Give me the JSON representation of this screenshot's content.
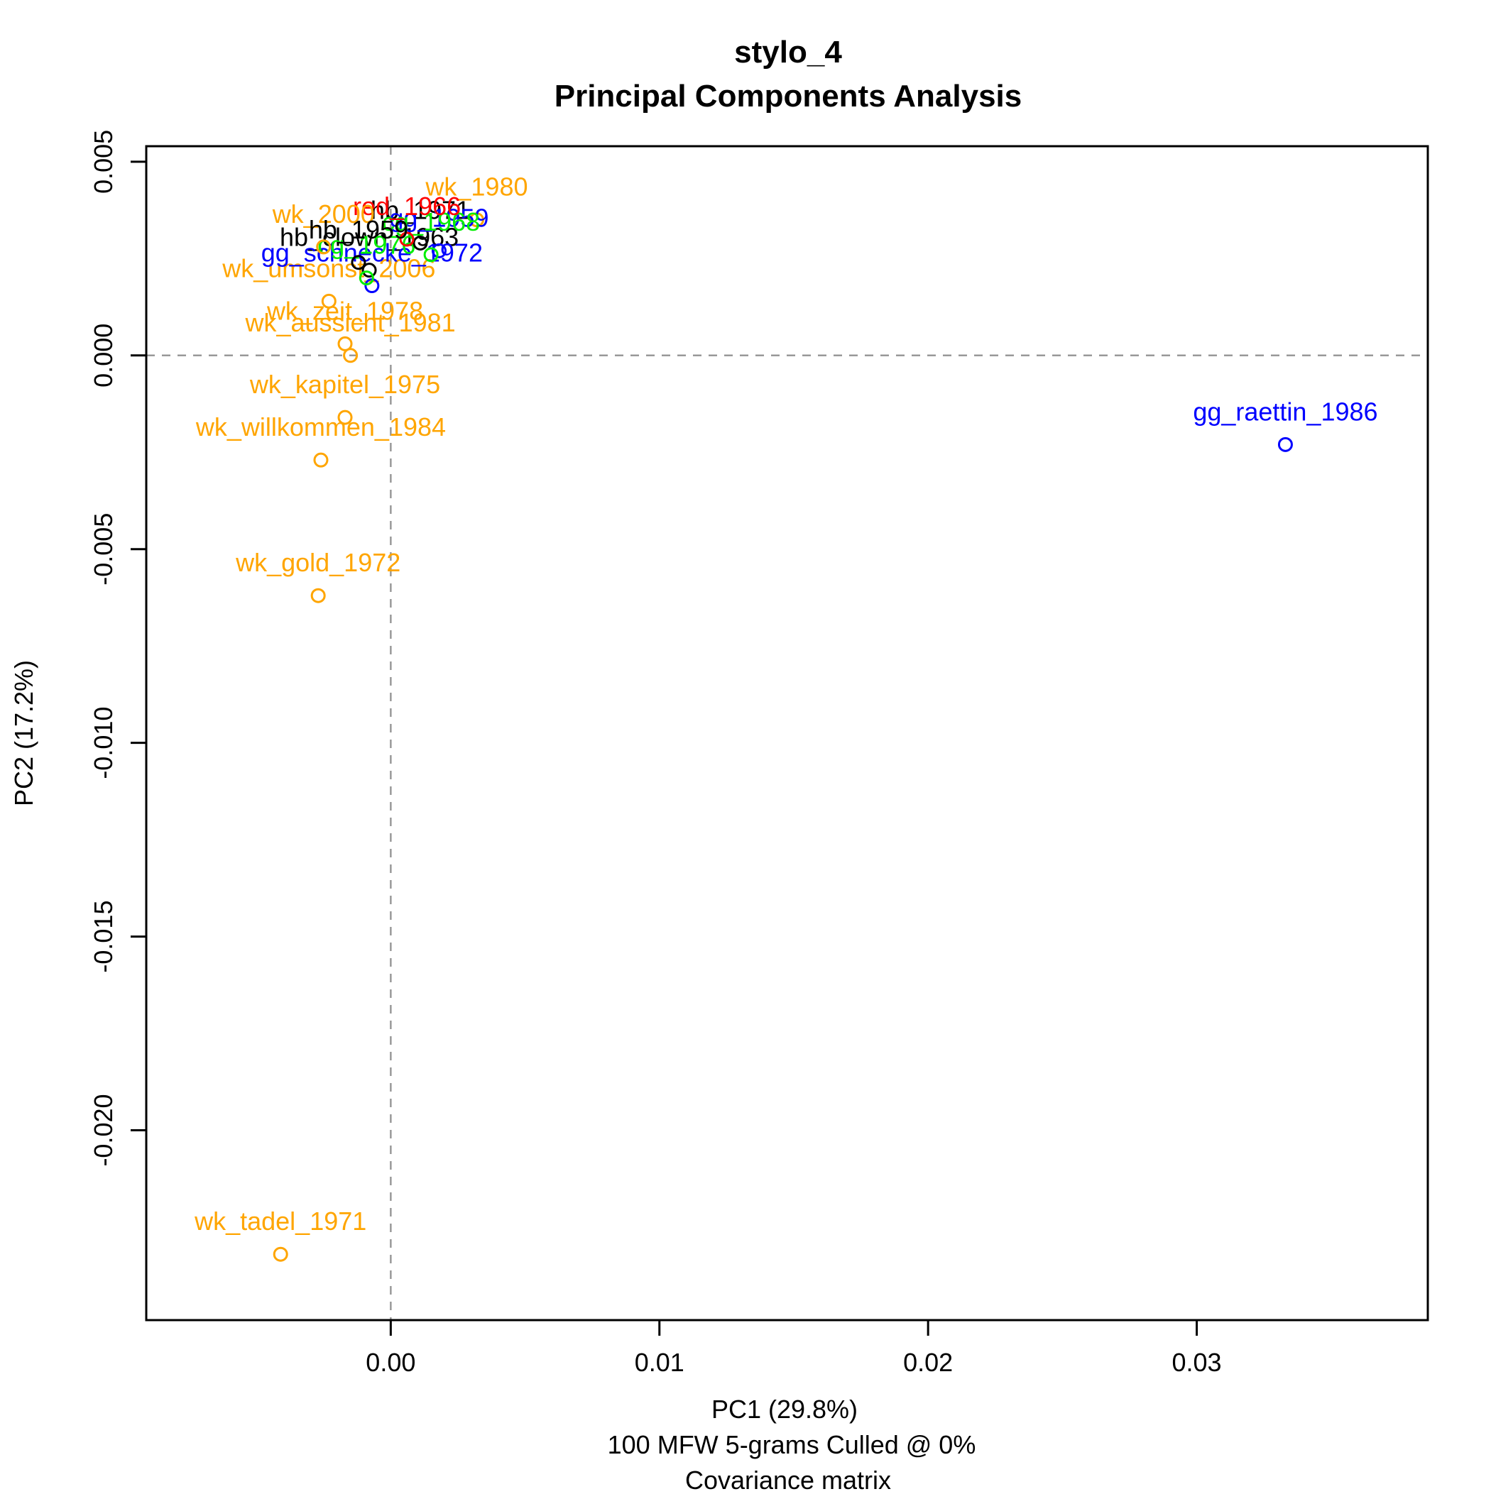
{
  "chart_data": {
    "type": "scatter",
    "title": "stylo_4",
    "subtitle": "Principal Components Analysis",
    "xlabel": "PC1 (29.8%)",
    "ylabel": "PC2 (17.2%)",
    "caption_lines": [
      "100 MFW 5-grams Culled @ 0%",
      "Covariance matrix"
    ],
    "xlim": [
      -0.0091,
      0.0386
    ],
    "ylim": [
      -0.0249,
      0.0054
    ],
    "x_ticks": [
      {
        "value": 0.0,
        "label": "0.00"
      },
      {
        "value": 0.01,
        "label": "0.01"
      },
      {
        "value": 0.02,
        "label": "0.02"
      },
      {
        "value": 0.03,
        "label": "0.03"
      }
    ],
    "y_ticks": [
      {
        "value": 0.005,
        "label": "0.005"
      },
      {
        "value": 0.0,
        "label": "0.000"
      },
      {
        "value": -0.005,
        "label": "-0.005"
      },
      {
        "value": -0.01,
        "label": "-0.010"
      },
      {
        "value": -0.015,
        "label": "-0.015"
      },
      {
        "value": -0.02,
        "label": "-0.020"
      }
    ],
    "reference_lines": {
      "x": 0,
      "y": 0,
      "style": "dashed",
      "color": "#999999"
    },
    "grid": false,
    "colors": {
      "wk": "#FFA500",
      "gg": "#0000FF",
      "hb": "#000000",
      "cg": "#00EE00",
      "red": "#FF0000"
    },
    "points": [
      {
        "label": "gg_raettin_1986",
        "x": 0.0333,
        "y": -0.0023,
        "color": "#0000FF"
      },
      {
        "label": "wk_tadel_1971",
        "x": -0.0041,
        "y": -0.0232,
        "color": "#FFA500"
      },
      {
        "label": "wk_gold_1972",
        "x": -0.0027,
        "y": -0.0062,
        "color": "#FFA500"
      },
      {
        "label": "wk_willkommen_1984",
        "x": -0.0026,
        "y": -0.0027,
        "color": "#FFA500"
      },
      {
        "label": "wk_kapitel_1975",
        "x": -0.0017,
        "y": -0.0016,
        "color": "#FFA500"
      },
      {
        "label": "wk_aussicht_1981",
        "x": -0.0015,
        "y": 0.0,
        "color": "#FFA500"
      },
      {
        "label": "wk_zeit_1978",
        "x": -0.0017,
        "y": 0.0003,
        "color": "#FFA500"
      },
      {
        "label": "wk_umsonst_2006",
        "x": -0.0023,
        "y": 0.0014,
        "color": "#FFA500"
      },
      {
        "label": "hb_clown_1963",
        "x": -0.0008,
        "y": 0.0022,
        "color": "#000000"
      },
      {
        "label": "gg_schnecke_1972",
        "x": -0.0007,
        "y": 0.0018,
        "color": "#0000FF"
      },
      {
        "label": "cg_1976",
        "x": -0.0009,
        "y": 0.002,
        "color": "#00EE00"
      },
      {
        "label": "wk_1980",
        "x": 0.0032,
        "y": 0.0035,
        "color": "#FFA500"
      },
      {
        "label": "hb_1971",
        "x": 0.0011,
        "y": 0.0029,
        "color": "#000000"
      },
      {
        "label": "gg_1959",
        "x": 0.0018,
        "y": 0.0027,
        "color": "#0000FF"
      },
      {
        "label": "cg_1968",
        "x": 0.0015,
        "y": 0.0026,
        "color": "#00EE00"
      },
      {
        "label": "red_1966",
        "x": 0.0006,
        "y": 0.003,
        "color": "#FF0000"
      },
      {
        "label": "wk_2000",
        "x": -0.0025,
        "y": 0.0028,
        "color": "#FFA500"
      },
      {
        "label": "hb_1959",
        "x": -0.0012,
        "y": 0.0024,
        "color": "#000000"
      }
    ]
  }
}
